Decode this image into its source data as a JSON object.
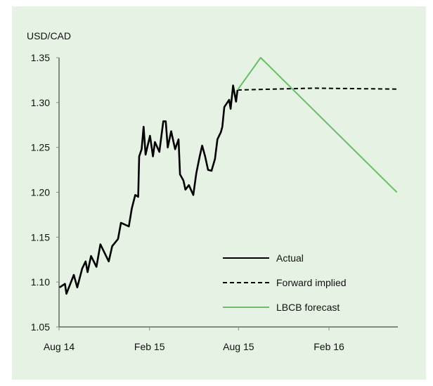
{
  "chart_data": {
    "type": "line",
    "ylabel": "USD/CAD",
    "ylim": [
      1.05,
      1.35
    ],
    "yticks": [
      "1.05",
      "1.10",
      "1.15",
      "1.20",
      "1.25",
      "1.30",
      "1.35"
    ],
    "xlim": [
      "2014-08-01",
      "2016-06-20"
    ],
    "xticks": [
      {
        "date": "2014-08-01",
        "label": "Aug 14"
      },
      {
        "date": "2015-02-01",
        "label": "Feb 15"
      },
      {
        "date": "2015-08-01",
        "label": "Aug 15"
      },
      {
        "date": "2016-02-01",
        "label": "Feb 16"
      }
    ],
    "grid": false,
    "legend_position": "bottom-right",
    "series": [
      {
        "name": "Actual",
        "color": "#000000",
        "style": "solid",
        "points": [
          [
            "2014-08-02",
            1.094
          ],
          [
            "2014-08-13",
            1.098
          ],
          [
            "2014-08-16",
            1.087
          ],
          [
            "2014-08-31",
            1.108
          ],
          [
            "2014-09-07",
            1.094
          ],
          [
            "2014-09-17",
            1.115
          ],
          [
            "2014-09-24",
            1.123
          ],
          [
            "2014-09-28",
            1.111
          ],
          [
            "2014-10-05",
            1.129
          ],
          [
            "2014-10-16",
            1.117
          ],
          [
            "2014-10-24",
            1.142
          ],
          [
            "2014-11-10",
            1.123
          ],
          [
            "2014-11-17",
            1.14
          ],
          [
            "2014-11-29",
            1.148
          ],
          [
            "2014-12-05",
            1.166
          ],
          [
            "2014-12-21",
            1.162
          ],
          [
            "2014-12-27",
            1.182
          ],
          [
            "2015-01-03",
            1.197
          ],
          [
            "2015-01-09",
            1.195
          ],
          [
            "2015-01-11",
            1.24
          ],
          [
            "2015-01-16",
            1.248
          ],
          [
            "2015-01-20",
            1.273
          ],
          [
            "2015-01-24",
            1.242
          ],
          [
            "2015-02-02",
            1.263
          ],
          [
            "2015-02-08",
            1.24
          ],
          [
            "2015-02-12",
            1.256
          ],
          [
            "2015-02-21",
            1.245
          ],
          [
            "2015-03-01",
            1.279
          ],
          [
            "2015-03-06",
            1.279
          ],
          [
            "2015-03-10",
            1.25
          ],
          [
            "2015-03-17",
            1.268
          ],
          [
            "2015-03-25",
            1.248
          ],
          [
            "2015-04-01",
            1.259
          ],
          [
            "2015-04-04",
            1.22
          ],
          [
            "2015-04-11",
            1.213
          ],
          [
            "2015-04-15",
            1.203
          ],
          [
            "2015-04-22",
            1.208
          ],
          [
            "2015-05-01",
            1.197
          ],
          [
            "2015-05-07",
            1.221
          ],
          [
            "2015-05-14",
            1.24
          ],
          [
            "2015-05-19",
            1.252
          ],
          [
            "2015-05-25",
            1.24
          ],
          [
            "2015-05-31",
            1.225
          ],
          [
            "2015-06-07",
            1.224
          ],
          [
            "2015-06-14",
            1.237
          ],
          [
            "2015-06-19",
            1.259
          ],
          [
            "2015-06-26",
            1.267
          ],
          [
            "2015-06-29",
            1.273
          ],
          [
            "2015-07-03",
            1.295
          ],
          [
            "2015-07-13",
            1.303
          ],
          [
            "2015-07-16",
            1.293
          ],
          [
            "2015-07-21",
            1.319
          ],
          [
            "2015-07-27",
            1.301
          ],
          [
            "2015-07-30",
            1.314
          ]
        ]
      },
      {
        "name": "Forward implied",
        "color": "#000000",
        "style": "dashed",
        "points": [
          [
            "2015-07-30",
            1.314
          ],
          [
            "2015-12-31",
            1.316
          ],
          [
            "2016-06-18",
            1.315
          ]
        ]
      },
      {
        "name": "LBCB forecast",
        "color": "#6cbd6a",
        "style": "solid",
        "points": [
          [
            "2015-07-30",
            1.314
          ],
          [
            "2015-09-15",
            1.35
          ],
          [
            "2016-06-18",
            1.2
          ]
        ]
      }
    ]
  }
}
